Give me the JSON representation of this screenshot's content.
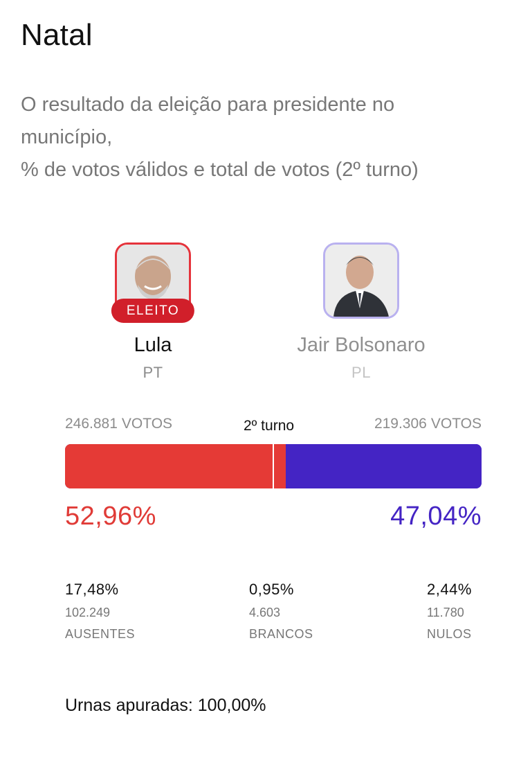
{
  "header": {
    "title": "Natal",
    "subtitle_lines": [
      "O resultado da eleição para presidente no",
      "município,",
      "% de votos válidos e total de votos (2º turno)"
    ]
  },
  "candidates": [
    {
      "name": "Lula",
      "party": "PT",
      "badge": "ELEITO",
      "votes": "246.881",
      "votes_unit": "VOTOS",
      "percent_label": "52,96%",
      "share": 52.96,
      "color": "#e53a36"
    },
    {
      "name": "Jair Bolsonaro",
      "party": "PL",
      "votes": "219.306",
      "votes_unit": "VOTOS",
      "percent_label": "47,04%",
      "share": 47.04,
      "color": "#4424c4"
    }
  ],
  "round_label": "2º turno",
  "stats": [
    {
      "percent": "17,48%",
      "count": "102.249",
      "label": "AUSENTES"
    },
    {
      "percent": "0,95%",
      "count": "4.603",
      "label": "BRANCOS"
    },
    {
      "percent": "2,44%",
      "count": "11.780",
      "label": "NULOS"
    }
  ],
  "footer": {
    "urnas_label": "Urnas apuradas:",
    "urnas_value": "100,00%"
  }
}
